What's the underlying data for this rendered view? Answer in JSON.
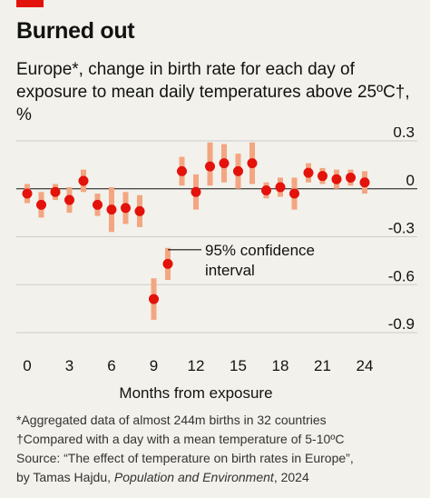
{
  "headline": "Burned out",
  "subtitle": "Europe*, change in birth rate for each day of exposure to mean daily temperatures above 25ºC†, %",
  "footnotes": {
    "line1": "*Aggregated data of almost 244m births in 32 countries",
    "line2": "†Compared with a day with a mean temperature of 5-10ºC",
    "line3": "Source: “The effect of temperature on birth rates in Europe”,",
    "line4_prefix": "by Tamas Hajdu, ",
    "line4_italic": "Population and Environment",
    "line4_suffix": ", 2024"
  },
  "colors": {
    "accent": "#e3120b",
    "point": "#e3120b",
    "ci": "#f4a582",
    "background": "#f2f1eb",
    "grid": "#cccccc"
  },
  "chart_data": {
    "type": "scatter",
    "title": "Burned out",
    "xlabel": "Months from exposure",
    "ylabel": "",
    "xlim": [
      0,
      24
    ],
    "ylim": [
      -0.9,
      0.3
    ],
    "x_ticks": [
      0,
      3,
      6,
      9,
      12,
      15,
      18,
      21,
      24
    ],
    "y_ticks": [
      0.3,
      0,
      -0.3,
      -0.6,
      -0.9
    ],
    "y_tick_labels": [
      "0.3",
      "0",
      "-0.3",
      "-0.6",
      "-0.9"
    ],
    "grid": true,
    "annotation": "95% confidence interval",
    "annotation_lines": [
      "95% confidence",
      "interval"
    ],
    "points": [
      {
        "x": 0,
        "y": -0.03,
        "lo": -0.09,
        "hi": 0.03
      },
      {
        "x": 1,
        "y": -0.1,
        "lo": -0.18,
        "hi": -0.02
      },
      {
        "x": 2,
        "y": -0.02,
        "lo": -0.07,
        "hi": 0.03
      },
      {
        "x": 3,
        "y": -0.07,
        "lo": -0.15,
        "hi": 0.01
      },
      {
        "x": 4,
        "y": 0.05,
        "lo": -0.02,
        "hi": 0.12
      },
      {
        "x": 5,
        "y": -0.1,
        "lo": -0.17,
        "hi": -0.03
      },
      {
        "x": 6,
        "y": -0.13,
        "lo": -0.27,
        "hi": 0.01
      },
      {
        "x": 7,
        "y": -0.12,
        "lo": -0.22,
        "hi": -0.02
      },
      {
        "x": 8,
        "y": -0.14,
        "lo": -0.24,
        "hi": -0.04
      },
      {
        "x": 9,
        "y": -0.69,
        "lo": -0.82,
        "hi": -0.56
      },
      {
        "x": 10,
        "y": -0.47,
        "lo": -0.57,
        "hi": -0.37
      },
      {
        "x": 11,
        "y": 0.11,
        "lo": 0.02,
        "hi": 0.2
      },
      {
        "x": 12,
        "y": -0.02,
        "lo": -0.13,
        "hi": 0.09
      },
      {
        "x": 13,
        "y": 0.14,
        "lo": 0.02,
        "hi": 0.29
      },
      {
        "x": 14,
        "y": 0.16,
        "lo": 0.04,
        "hi": 0.28
      },
      {
        "x": 15,
        "y": 0.11,
        "lo": 0.0,
        "hi": 0.22
      },
      {
        "x": 16,
        "y": 0.16,
        "lo": 0.03,
        "hi": 0.29
      },
      {
        "x": 17,
        "y": -0.01,
        "lo": -0.06,
        "hi": 0.04
      },
      {
        "x": 18,
        "y": 0.01,
        "lo": -0.05,
        "hi": 0.07
      },
      {
        "x": 19,
        "y": -0.03,
        "lo": -0.13,
        "hi": 0.07
      },
      {
        "x": 20,
        "y": 0.1,
        "lo": 0.04,
        "hi": 0.16
      },
      {
        "x": 21,
        "y": 0.08,
        "lo": 0.03,
        "hi": 0.13
      },
      {
        "x": 22,
        "y": 0.06,
        "lo": 0.0,
        "hi": 0.12
      },
      {
        "x": 23,
        "y": 0.07,
        "lo": 0.02,
        "hi": 0.12
      },
      {
        "x": 24,
        "y": 0.04,
        "lo": -0.03,
        "hi": 0.11
      }
    ]
  }
}
